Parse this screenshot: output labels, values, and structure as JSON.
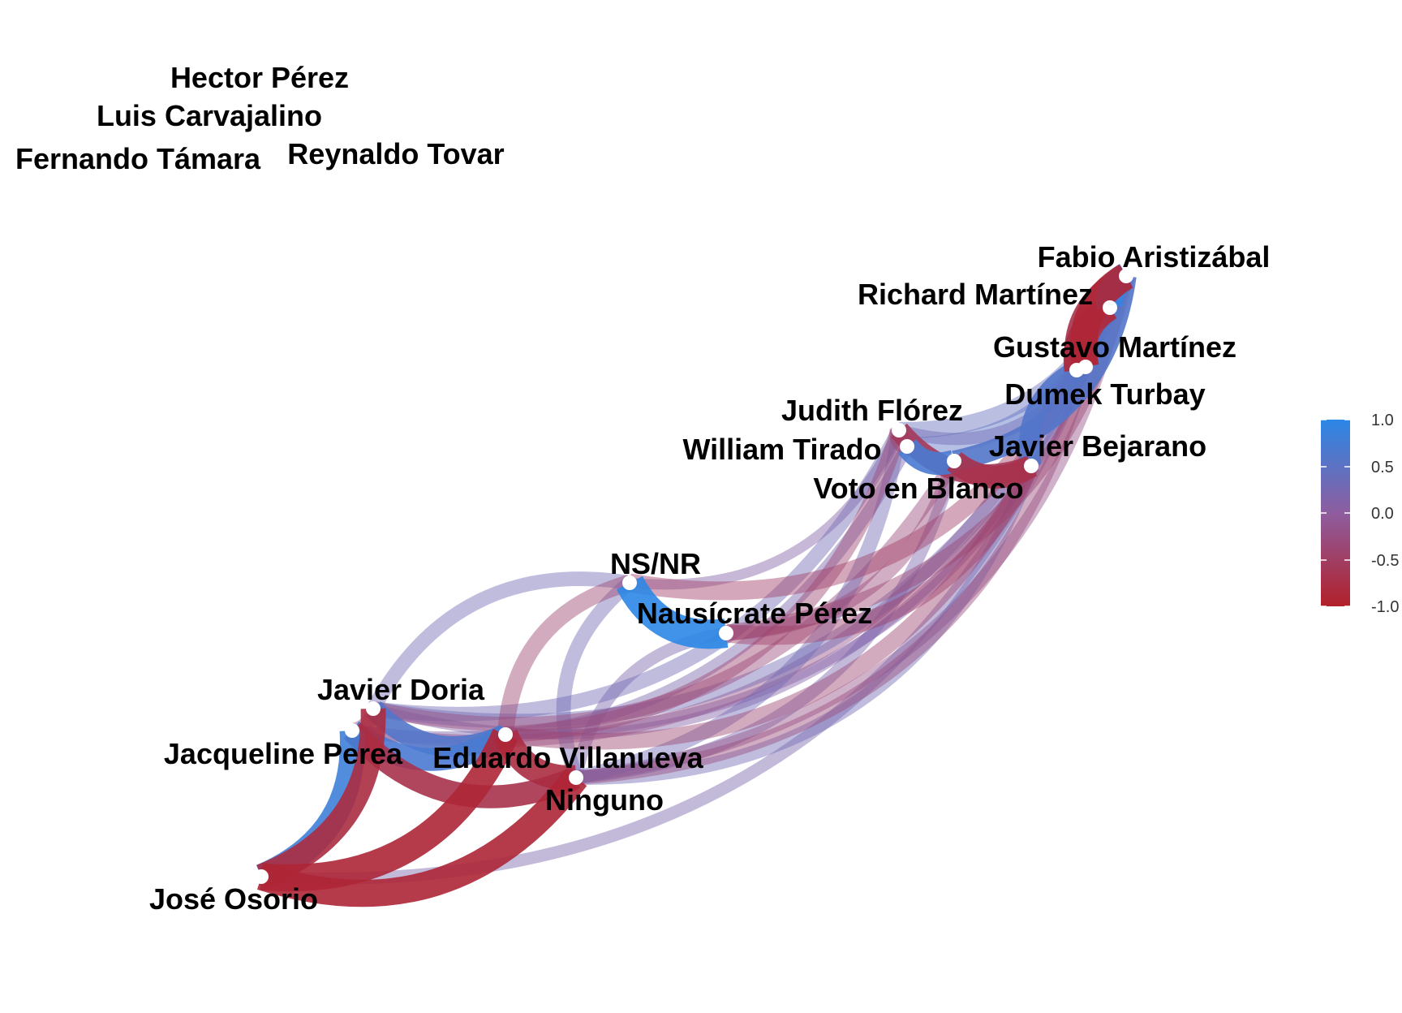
{
  "legend": {
    "ticks": [
      "1.0",
      "0.5",
      "0.0",
      "-0.5",
      "-1.0"
    ],
    "colors": {
      "positive": "#2b87e6",
      "neutral": "#8e5d9f",
      "negative": "#b2202a"
    }
  },
  "nodes": [
    {
      "id": "hector",
      "label": "Hector Pérez",
      "connected": false
    },
    {
      "id": "luis",
      "label": "Luis Carvajalino",
      "connected": false
    },
    {
      "id": "fernando",
      "label": "Fernando Támara",
      "connected": false
    },
    {
      "id": "reynaldo",
      "label": "Reynaldo Tovar",
      "connected": false
    },
    {
      "id": "fabio",
      "label": "Fabio Aristizábal",
      "connected": true
    },
    {
      "id": "richard",
      "label": "Richard Martínez",
      "connected": true
    },
    {
      "id": "gustavo",
      "label": "Gustavo Martínez",
      "connected": true
    },
    {
      "id": "dumek",
      "label": "Dumek Turbay",
      "connected": true
    },
    {
      "id": "judith",
      "label": "Judith Flórez",
      "connected": true
    },
    {
      "id": "william",
      "label": "William Tirado",
      "connected": true
    },
    {
      "id": "javierb",
      "label": "Javier Bejarano",
      "connected": true
    },
    {
      "id": "voto",
      "label": "Voto en Blanco",
      "connected": true
    },
    {
      "id": "nsnr",
      "label": "NS/NR",
      "connected": true
    },
    {
      "id": "nausicrate",
      "label": "Nausícrate Pérez",
      "connected": true
    },
    {
      "id": "javierd",
      "label": "Javier Doria",
      "connected": true
    },
    {
      "id": "jacqueline",
      "label": "Jacqueline Perea",
      "connected": true
    },
    {
      "id": "eduardo",
      "label": "Eduardo Villanueva",
      "connected": true
    },
    {
      "id": "ninguno",
      "label": "Ninguno",
      "connected": true
    },
    {
      "id": "jose",
      "label": "José Osorio",
      "connected": true
    }
  ],
  "edges": [
    {
      "source": "nsnr",
      "target": "nausicrate",
      "value": 1.0
    },
    {
      "source": "fabio",
      "target": "richard",
      "value": 0.9
    },
    {
      "source": "fabio",
      "target": "gustavo",
      "value": -0.9
    },
    {
      "source": "richard",
      "target": "gustavo",
      "value": -0.8
    },
    {
      "source": "fabio",
      "target": "dumek",
      "value": -0.7
    },
    {
      "source": "richard",
      "target": "dumek",
      "value": -0.8
    },
    {
      "source": "gustavo",
      "target": "dumek",
      "value": -0.6
    },
    {
      "source": "dumek",
      "target": "javierb",
      "value": 0.6
    },
    {
      "source": "judith",
      "target": "william",
      "value": -0.5
    },
    {
      "source": "william",
      "target": "voto",
      "value": 0.7
    },
    {
      "source": "voto",
      "target": "javierb",
      "value": -0.7
    },
    {
      "source": "judith",
      "target": "javierb",
      "value": -0.6
    },
    {
      "source": "judith",
      "target": "fabio",
      "value": 0.4
    },
    {
      "source": "william",
      "target": "richard",
      "value": 0.5
    },
    {
      "source": "voto",
      "target": "fabio",
      "value": 0.6
    },
    {
      "source": "judith",
      "target": "gustavo",
      "value": 0.2
    },
    {
      "source": "jose",
      "target": "jacqueline",
      "value": 0.8
    },
    {
      "source": "jose",
      "target": "javierd",
      "value": -0.8
    },
    {
      "source": "jose",
      "target": "eduardo",
      "value": -0.9
    },
    {
      "source": "jose",
      "target": "ninguno",
      "value": -0.9
    },
    {
      "source": "jacqueline",
      "target": "javierd",
      "value": -0.3
    },
    {
      "source": "jacqueline",
      "target": "eduardo",
      "value": 0.7
    },
    {
      "source": "javierd",
      "target": "eduardo",
      "value": 0.6
    },
    {
      "source": "eduardo",
      "target": "ninguno",
      "value": -0.8
    },
    {
      "source": "jacqueline",
      "target": "ninguno",
      "value": -0.7
    },
    {
      "source": "nsnr",
      "target": "ninguno",
      "value": 0.3
    },
    {
      "source": "nausicrate",
      "target": "ninguno",
      "value": 0.2
    },
    {
      "source": "nsnr",
      "target": "javierd",
      "value": 0.3
    },
    {
      "source": "nsnr",
      "target": "eduardo",
      "value": -0.4
    },
    {
      "source": "nausicrate",
      "target": "javierb",
      "value": -0.5
    },
    {
      "source": "nsnr",
      "target": "dumek",
      "value": -0.5
    },
    {
      "source": "nausicrate",
      "target": "fabio",
      "value": -0.4
    },
    {
      "source": "javierd",
      "target": "judith",
      "value": 0.3
    },
    {
      "source": "javierd",
      "target": "gustavo",
      "value": 0.3
    },
    {
      "source": "jacqueline",
      "target": "william",
      "value": 0.2
    },
    {
      "source": "javierd",
      "target": "voto",
      "value": -0.3
    },
    {
      "source": "eduardo",
      "target": "judith",
      "value": -0.4
    },
    {
      "source": "eduardo",
      "target": "javierb",
      "value": -0.4
    },
    {
      "source": "ninguno",
      "target": "judith",
      "value": 0.3
    },
    {
      "source": "ninguno",
      "target": "voto",
      "value": 0.2
    },
    {
      "source": "ninguno",
      "target": "javierb",
      "value": 0.3
    },
    {
      "source": "ninguno",
      "target": "gustavo",
      "value": -0.3
    },
    {
      "source": "ninguno",
      "target": "fabio",
      "value": -0.2
    },
    {
      "source": "jose",
      "target": "gustavo",
      "value": 0.2
    },
    {
      "source": "jacqueline",
      "target": "dumek",
      "value": -0.2
    },
    {
      "source": "eduardo",
      "target": "richard",
      "value": 0.1
    },
    {
      "source": "javierd",
      "target": "javierb",
      "value": 0.1
    },
    {
      "source": "nausicrate",
      "target": "voto",
      "value": -0.3
    },
    {
      "source": "nsnr",
      "target": "judith",
      "value": 0.1
    }
  ]
}
